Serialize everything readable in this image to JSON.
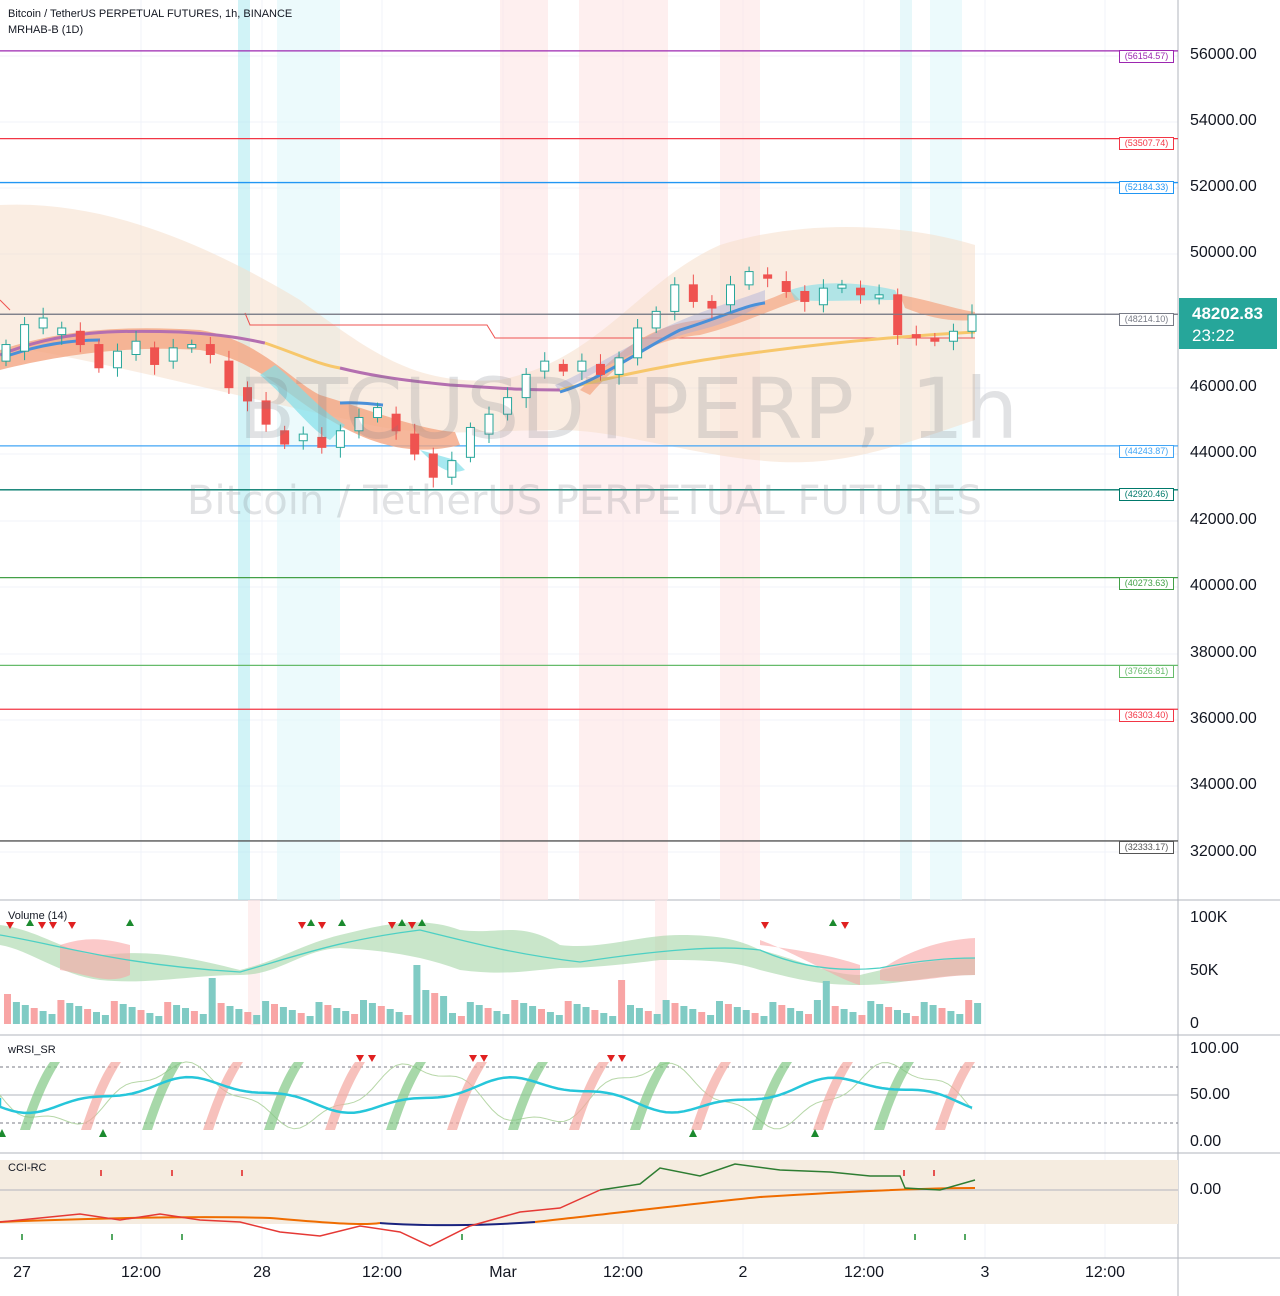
{
  "header": {
    "symbol_line": "Bitcoin / TetherUS PERPETUAL FUTURES, 1h, BINANCE",
    "indicator_line": "MRHAB-B (1D)"
  },
  "watermark": {
    "ticker": "BTCUSDTPERP, 1h",
    "name": "Bitcoin / TetherUS PERPETUAL FUTURES"
  },
  "last_price": {
    "value": "48202.83",
    "countdown": "23:22",
    "color": "#26a69a"
  },
  "price_axis": {
    "ticks": [
      "56000.00",
      "54000.00",
      "52000.00",
      "50000.00",
      "46000.00",
      "44000.00",
      "42000.00",
      "40000.00",
      "38000.00",
      "36000.00",
      "34000.00",
      "32000.00"
    ]
  },
  "volume_axis": {
    "ticks": [
      "100K",
      "50K",
      "0"
    ]
  },
  "rsi_axis": {
    "ticks": [
      "100.00",
      "50.00",
      "0.00"
    ]
  },
  "cci_axis": {
    "ticks": [
      "0.00"
    ]
  },
  "time_axis": {
    "ticks": [
      "27",
      "12:00",
      "28",
      "12:00",
      "Mar",
      "12:00",
      "2",
      "12:00",
      "3",
      "12:00"
    ]
  },
  "panels": {
    "volume": "Volume (14)",
    "rsi": "wRSI_SR",
    "cci": "CCI-RC"
  },
  "levels": [
    {
      "label": "(56154.57)",
      "price": 56154.57,
      "color": "#9c27b0"
    },
    {
      "label": "(53507.74)",
      "price": 53507.74,
      "color": "#f23645"
    },
    {
      "label": "(52184.33)",
      "price": 52184.33,
      "color": "#2196f3"
    },
    {
      "label": "(48214.10)",
      "price": 48214.1,
      "color": "#787b86"
    },
    {
      "label": "(44243.87)",
      "price": 44243.87,
      "color": "#42a5f5"
    },
    {
      "label": "(42920.46)",
      "price": 42920.46,
      "color": "#00796b"
    },
    {
      "label": "(40273.63)",
      "price": 40273.63,
      "color": "#43a047"
    },
    {
      "label": "(37626.81)",
      "price": 37626.81,
      "color": "#66bb6a"
    },
    {
      "label": "(36303.40)",
      "price": 36303.4,
      "color": "#f23645"
    },
    {
      "label": "(32333.17)",
      "price": 32333.17,
      "color": "#555555"
    }
  ],
  "colors": {
    "up": "#26a69a",
    "down": "#ef5350",
    "grid": "#f0f3fa",
    "ema_fast": "#4a90d9",
    "ema_mid": "#f7c76b",
    "ema_slow": "#b46fb0"
  },
  "chart_data": {
    "type": "candlestick",
    "price_range": [
      30500,
      57500
    ],
    "ohlc_key_points": [
      [
        46800,
        47300
      ],
      [
        47100,
        47900
      ],
      [
        47800,
        48100
      ],
      [
        47600,
        47800
      ],
      [
        47700,
        47300
      ],
      [
        47300,
        46600
      ],
      [
        46600,
        47100
      ],
      [
        47000,
        47400
      ],
      [
        47200,
        46700
      ],
      [
        46800,
        47200
      ],
      [
        47200,
        47300
      ],
      [
        47300,
        47000
      ],
      [
        46800,
        46000
      ],
      [
        46000,
        45600
      ],
      [
        45600,
        44900
      ],
      [
        44700,
        44300
      ],
      [
        44400,
        44600
      ],
      [
        44500,
        44200
      ],
      [
        44200,
        44700
      ],
      [
        44700,
        45100
      ],
      [
        45100,
        45400
      ],
      [
        45200,
        44700
      ],
      [
        44600,
        44000
      ],
      [
        44000,
        43300
      ],
      [
        43300,
        43800
      ],
      [
        43900,
        44800
      ],
      [
        44600,
        45200
      ],
      [
        45200,
        45700
      ],
      [
        45700,
        46400
      ],
      [
        46500,
        46800
      ],
      [
        46700,
        46500
      ],
      [
        46500,
        46800
      ],
      [
        46700,
        46400
      ],
      [
        46400,
        46900
      ],
      [
        46900,
        47800
      ],
      [
        47800,
        48300
      ],
      [
        48300,
        49100
      ],
      [
        49100,
        48600
      ],
      [
        48600,
        48400
      ],
      [
        48500,
        49100
      ],
      [
        49100,
        49500
      ],
      [
        49400,
        49300
      ],
      [
        49200,
        48900
      ],
      [
        48900,
        48600
      ],
      [
        48500,
        49000
      ],
      [
        49000,
        49100
      ],
      [
        49000,
        48800
      ],
      [
        48700,
        48800
      ],
      [
        48800,
        47600
      ],
      [
        47600,
        47500
      ],
      [
        47500,
        47400
      ],
      [
        47400,
        47700
      ],
      [
        47700,
        48200
      ]
    ]
  }
}
